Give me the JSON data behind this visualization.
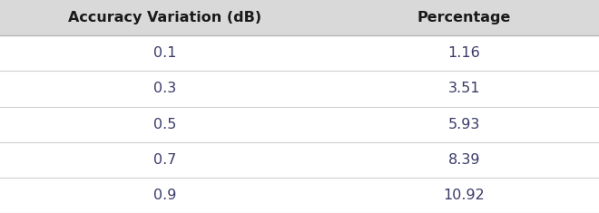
{
  "col_headers": [
    "Accuracy Variation (dB)",
    "Percentage"
  ],
  "rows": [
    [
      "0.1",
      "1.16"
    ],
    [
      "0.3",
      "3.51"
    ],
    [
      "0.5",
      "5.93"
    ],
    [
      "0.7",
      "8.39"
    ],
    [
      "0.9",
      "10.92"
    ]
  ],
  "header_bg": "#d9d9d9",
  "row_bg": "#ffffff",
  "divider_color": "#d0d0d0",
  "header_text_color": "#1a1a1a",
  "row_text_color": "#3a3a6a",
  "header_fontsize": 11.5,
  "row_fontsize": 11.5,
  "outer_bg": "#ffffff",
  "figsize": [
    6.6,
    2.35
  ],
  "dpi": 100
}
